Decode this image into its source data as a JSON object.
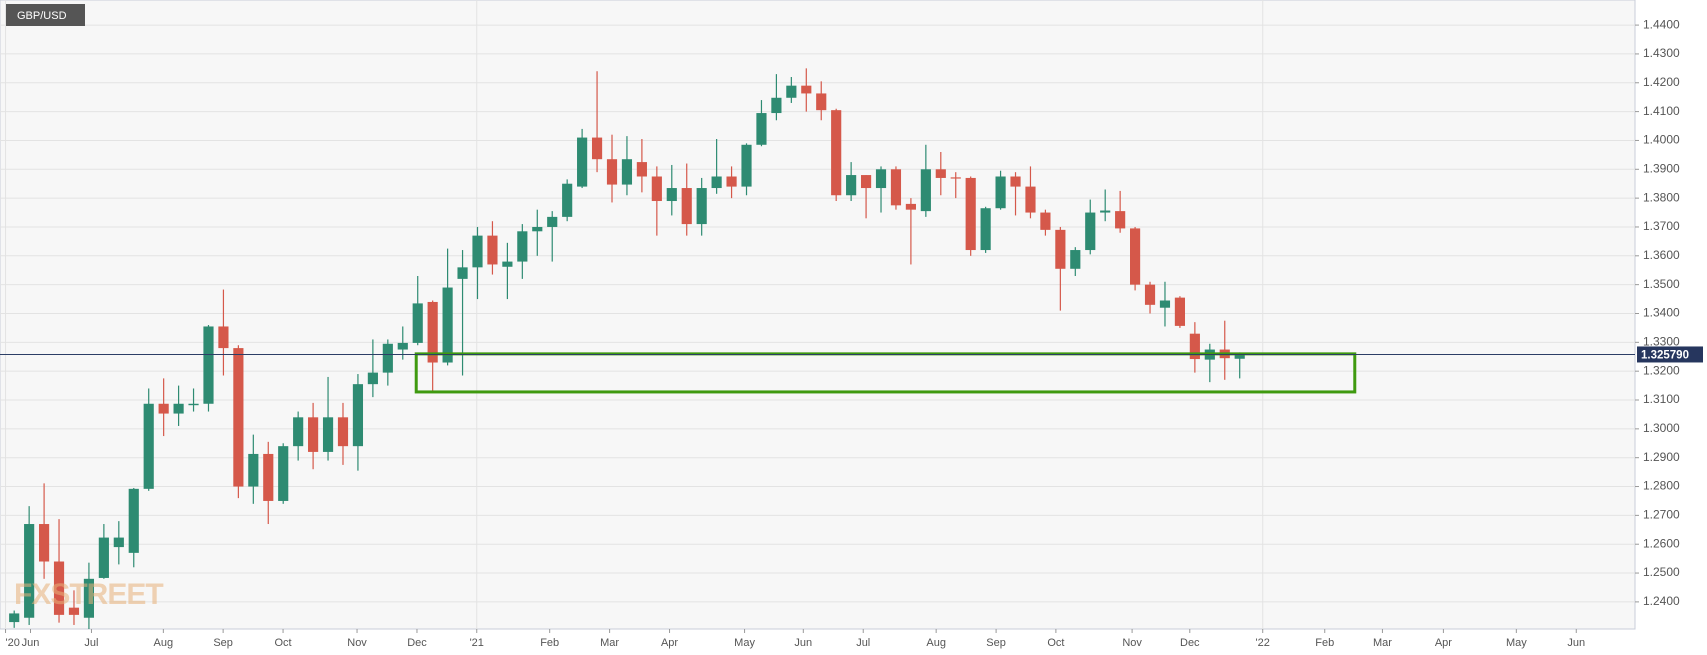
{
  "chart_data": {
    "type": "candlestick",
    "title": "GBP/USD",
    "watermark": "FXSTREET",
    "up_color": "#2e8b72",
    "down_color": "#d5584a",
    "x": [
      0,
      1,
      2,
      3,
      4,
      5,
      6,
      7,
      8,
      9,
      10,
      11,
      12,
      13,
      14,
      15,
      16,
      17,
      18,
      19,
      20,
      21,
      22,
      23,
      24,
      25,
      26,
      27,
      28,
      29,
      30,
      31,
      32,
      33,
      34,
      35,
      36,
      37,
      38,
      39,
      40,
      41,
      42,
      43,
      44,
      45,
      46,
      47,
      48,
      49,
      50,
      51,
      52,
      53,
      54,
      55,
      56,
      57,
      58,
      59,
      60,
      61,
      62,
      63,
      64,
      65,
      66,
      67,
      68,
      69,
      70,
      71,
      72,
      73,
      74,
      75,
      76,
      77,
      78,
      79,
      80,
      81,
      82
    ],
    "open": [
      1.233,
      1.2345,
      1.267,
      1.254,
      1.238,
      1.2345,
      1.2483,
      1.259,
      1.257,
      1.2792,
      1.3087,
      1.3053,
      1.3082,
      1.3087,
      1.3355,
      1.328,
      1.28,
      1.2913,
      1.275,
      1.294,
      1.304,
      1.292,
      1.304,
      1.294,
      1.3155,
      1.3195,
      1.3275,
      1.3298,
      1.344,
      1.323,
      1.352,
      1.356,
      1.367,
      1.3562,
      1.358,
      1.3685,
      1.37,
      1.3735,
      1.384,
      1.401,
      1.3935,
      1.3847,
      1.3925,
      1.3875,
      1.379,
      1.3835,
      1.371,
      1.3835,
      1.3875,
      1.384,
      1.3985,
      1.4095,
      1.4148,
      1.419,
      1.4163,
      1.4105,
      1.381,
      1.388,
      1.3835,
      1.39,
      1.378,
      1.3755,
      1.39,
      1.3872,
      1.387,
      1.362,
      1.3765,
      1.3875,
      1.384,
      1.375,
      1.369,
      1.3555,
      1.362,
      1.375,
      1.3755,
      1.3695,
      1.35,
      1.342,
      1.3455,
      1.333,
      1.324,
      1.3275,
      1.3243
    ],
    "high": [
      1.237,
      1.2732,
      1.2811,
      1.2687,
      1.244,
      1.2536,
      1.267,
      1.268,
      1.2795,
      1.314,
      1.3175,
      1.315,
      1.314,
      1.336,
      1.3483,
      1.329,
      1.298,
      1.2955,
      1.295,
      1.306,
      1.309,
      1.318,
      1.309,
      1.319,
      1.331,
      1.331,
      1.3355,
      1.353,
      1.3445,
      1.3625,
      1.362,
      1.37,
      1.372,
      1.3645,
      1.371,
      1.376,
      1.3755,
      1.3865,
      1.404,
      1.424,
      1.402,
      1.4015,
      1.4005,
      1.391,
      1.3915,
      1.392,
      1.387,
      1.4005,
      1.391,
      1.399,
      1.414,
      1.423,
      1.422,
      1.425,
      1.4205,
      1.411,
      1.3925,
      1.388,
      1.391,
      1.391,
      1.38,
      1.3985,
      1.396,
      1.389,
      1.3875,
      1.377,
      1.3895,
      1.389,
      1.391,
      1.376,
      1.37,
      1.363,
      1.3795,
      1.383,
      1.3825,
      1.37,
      1.351,
      1.351,
      1.346,
      1.337,
      1.3295,
      1.3375,
      1.3265
    ],
    "low": [
      1.231,
      1.232,
      1.248,
      1.2328,
      1.232,
      1.2306,
      1.248,
      1.253,
      1.252,
      1.2785,
      1.2975,
      1.301,
      1.306,
      1.306,
      1.3185,
      1.276,
      1.274,
      1.267,
      1.274,
      1.289,
      1.286,
      1.289,
      1.2875,
      1.2855,
      1.311,
      1.315,
      1.324,
      1.329,
      1.313,
      1.322,
      1.3185,
      1.345,
      1.3535,
      1.345,
      1.352,
      1.36,
      1.358,
      1.372,
      1.3835,
      1.389,
      1.3785,
      1.381,
      1.382,
      1.367,
      1.374,
      1.367,
      1.367,
      1.3815,
      1.38,
      1.381,
      1.398,
      1.407,
      1.413,
      1.41,
      1.407,
      1.379,
      1.379,
      1.373,
      1.375,
      1.376,
      1.357,
      1.3735,
      1.381,
      1.38,
      1.36,
      1.361,
      1.376,
      1.374,
      1.373,
      1.367,
      1.341,
      1.353,
      1.3605,
      1.372,
      1.368,
      1.348,
      1.34,
      1.3355,
      1.335,
      1.3195,
      1.3162,
      1.317,
      1.3175
    ],
    "close": [
      1.236,
      1.267,
      1.254,
      1.2355,
      1.2355,
      1.248,
      1.2623,
      1.2623,
      1.2792,
      1.3087,
      1.3053,
      1.3087,
      1.3087,
      1.3355,
      1.328,
      1.28,
      1.2913,
      1.275,
      1.294,
      1.304,
      1.292,
      1.304,
      1.294,
      1.3155,
      1.3195,
      1.3295,
      1.3298,
      1.3435,
      1.323,
      1.349,
      1.356,
      1.367,
      1.357,
      1.358,
      1.3685,
      1.37,
      1.3735,
      1.385,
      1.401,
      1.3935,
      1.3847,
      1.3935,
      1.3875,
      1.379,
      1.3835,
      1.371,
      1.3835,
      1.3875,
      1.384,
      1.3985,
      1.4095,
      1.4148,
      1.419,
      1.4163,
      1.4105,
      1.381,
      1.388,
      1.3835,
      1.39,
      1.3775,
      1.376,
      1.39,
      1.387,
      1.387,
      1.362,
      1.3765,
      1.3875,
      1.384,
      1.375,
      1.369,
      1.3555,
      1.362,
      1.375,
      1.3757,
      1.3695,
      1.35,
      1.343,
      1.3445,
      1.3357,
      1.3242,
      1.3275,
      1.3245,
      1.3258
    ],
    "last_price": 1.32579,
    "last_price_label": "1.325790",
    "zone": {
      "x": [
        26.9,
        89.7
      ],
      "y": [
        1.3128,
        1.326
      ],
      "color": "#3f9a10"
    },
    "xlim": [
      -0.95,
      108.45
    ],
    "xticks": [
      {
        "value": -0.58,
        "label": "'20"
      },
      {
        "value": 1.09,
        "label": "Jun"
      },
      {
        "value": 5.17,
        "label": "Jul"
      },
      {
        "value": 9.98,
        "label": "Aug"
      },
      {
        "value": 13.98,
        "label": "Sep"
      },
      {
        "value": 17.99,
        "label": "Oct"
      },
      {
        "value": 22.94,
        "label": "Nov"
      },
      {
        "value": 26.95,
        "label": "Dec"
      },
      {
        "value": 30.95,
        "label": "'21"
      },
      {
        "value": 35.83,
        "label": "Feb"
      },
      {
        "value": 39.84,
        "label": "Mar"
      },
      {
        "value": 43.85,
        "label": "Apr"
      },
      {
        "value": 48.87,
        "label": "May"
      },
      {
        "value": 52.8,
        "label": "Jun"
      },
      {
        "value": 56.81,
        "label": "Jul"
      },
      {
        "value": 61.69,
        "label": "Aug"
      },
      {
        "value": 65.7,
        "label": "Sep"
      },
      {
        "value": 69.7,
        "label": "Oct"
      },
      {
        "value": 74.8,
        "label": "Nov"
      },
      {
        "value": 78.66,
        "label": "Dec"
      },
      {
        "value": 83.54,
        "label": "'22"
      },
      {
        "value": 87.69,
        "label": "Feb"
      },
      {
        "value": 91.55,
        "label": "Mar"
      },
      {
        "value": 95.63,
        "label": "Apr"
      },
      {
        "value": 100.51,
        "label": "May"
      },
      {
        "value": 104.52,
        "label": "Jun"
      }
    ],
    "ylim": [
      1.2306,
      1.4487
    ],
    "yticks": [
      {
        "value": 1.24,
        "label": "1.2400"
      },
      {
        "value": 1.25,
        "label": "1.2500"
      },
      {
        "value": 1.26,
        "label": "1.2600"
      },
      {
        "value": 1.27,
        "label": "1.2700"
      },
      {
        "value": 1.28,
        "label": "1.2800"
      },
      {
        "value": 1.29,
        "label": "1.2900"
      },
      {
        "value": 1.3,
        "label": "1.3000"
      },
      {
        "value": 1.31,
        "label": "1.3100"
      },
      {
        "value": 1.32,
        "label": "1.3200"
      },
      {
        "value": 1.33,
        "label": "1.3300"
      },
      {
        "value": 1.34,
        "label": "1.3400"
      },
      {
        "value": 1.35,
        "label": "1.3500"
      },
      {
        "value": 1.36,
        "label": "1.3600"
      },
      {
        "value": 1.37,
        "label": "1.3700"
      },
      {
        "value": 1.38,
        "label": "1.3800"
      },
      {
        "value": 1.39,
        "label": "1.3900"
      },
      {
        "value": 1.4,
        "label": "1.4000"
      },
      {
        "value": 1.41,
        "label": "1.4100"
      },
      {
        "value": 1.42,
        "label": "1.4200"
      },
      {
        "value": 1.43,
        "label": "1.4300"
      },
      {
        "value": 1.44,
        "label": "1.4400"
      }
    ],
    "grid": true
  }
}
